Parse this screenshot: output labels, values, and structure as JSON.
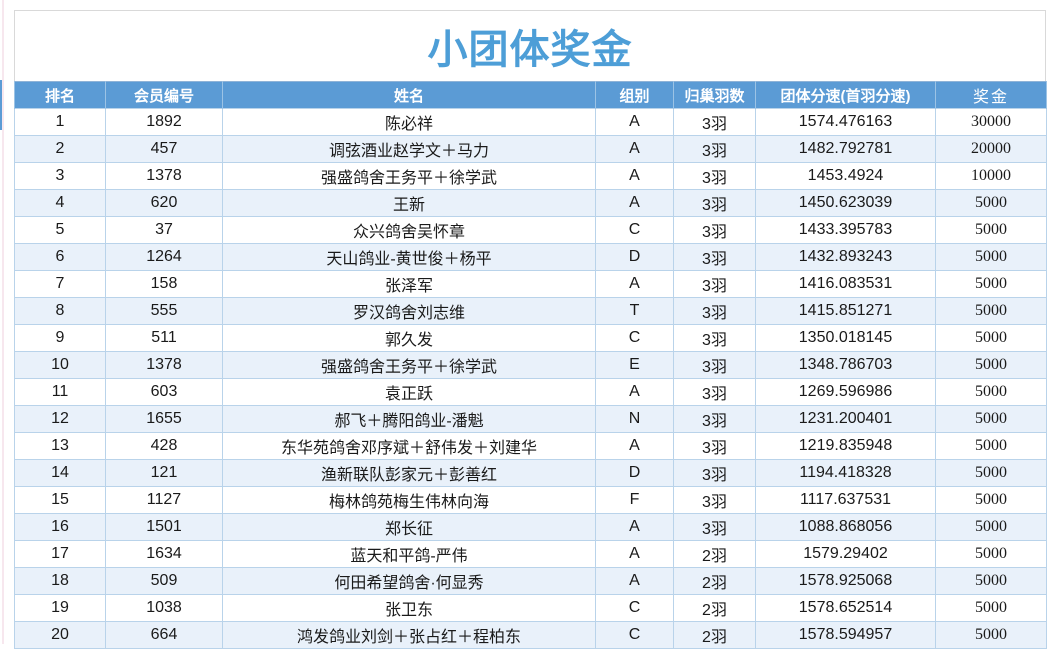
{
  "page": {
    "title": "小团体奖金"
  },
  "colors": {
    "header_bg": "#5b9bd5",
    "title_text": "#4d9ed7",
    "band_row_bg": "#e9f1fa",
    "grid_border": "#b9d3ea",
    "outer_border": "#8fb3d7",
    "title_border": "#d9d9d9"
  },
  "table": {
    "columns": [
      "排名",
      "会员编号",
      "姓名",
      "组别",
      "归巢羽数",
      "团体分速(首羽分速)",
      "奖金"
    ],
    "rows": [
      {
        "rank": "1",
        "member_id": "1892",
        "name": "陈必祥",
        "group": "A",
        "homing_birds": "3羽",
        "speed": "1574.476163",
        "prize": "30000"
      },
      {
        "rank": "2",
        "member_id": "457",
        "name": "调弦酒业赵学文＋马力",
        "group": "A",
        "homing_birds": "3羽",
        "speed": "1482.792781",
        "prize": "20000"
      },
      {
        "rank": "3",
        "member_id": "1378",
        "name": "强盛鸽舍王务平＋徐学武",
        "group": "A",
        "homing_birds": "3羽",
        "speed": "1453.4924",
        "prize": "10000"
      },
      {
        "rank": "4",
        "member_id": "620",
        "name": "王新",
        "group": "A",
        "homing_birds": "3羽",
        "speed": "1450.623039",
        "prize": "5000"
      },
      {
        "rank": "5",
        "member_id": "37",
        "name": "众兴鸽舍吴怀章",
        "group": "C",
        "homing_birds": "3羽",
        "speed": "1433.395783",
        "prize": "5000"
      },
      {
        "rank": "6",
        "member_id": "1264",
        "name": "天山鸽业-黄世俊＋杨平",
        "group": "D",
        "homing_birds": "3羽",
        "speed": "1432.893243",
        "prize": "5000"
      },
      {
        "rank": "7",
        "member_id": "158",
        "name": "张泽军",
        "group": "A",
        "homing_birds": "3羽",
        "speed": "1416.083531",
        "prize": "5000"
      },
      {
        "rank": "8",
        "member_id": "555",
        "name": "罗汉鸽舍刘志维",
        "group": "T",
        "homing_birds": "3羽",
        "speed": "1415.851271",
        "prize": "5000"
      },
      {
        "rank": "9",
        "member_id": "511",
        "name": "郭久发",
        "group": "C",
        "homing_birds": "3羽",
        "speed": "1350.018145",
        "prize": "5000"
      },
      {
        "rank": "10",
        "member_id": "1378",
        "name": "强盛鸽舍王务平＋徐学武",
        "group": "E",
        "homing_birds": "3羽",
        "speed": "1348.786703",
        "prize": "5000"
      },
      {
        "rank": "11",
        "member_id": "603",
        "name": "袁正跃",
        "group": "A",
        "homing_birds": "3羽",
        "speed": "1269.596986",
        "prize": "5000"
      },
      {
        "rank": "12",
        "member_id": "1655",
        "name": "郝飞＋腾阳鸽业-潘魁",
        "group": "N",
        "homing_birds": "3羽",
        "speed": "1231.200401",
        "prize": "5000"
      },
      {
        "rank": "13",
        "member_id": "428",
        "name": "东华苑鸽舍邓序斌＋舒伟发＋刘建华",
        "group": "A",
        "homing_birds": "3羽",
        "speed": "1219.835948",
        "prize": "5000"
      },
      {
        "rank": "14",
        "member_id": "121",
        "name": "渔新联队彭家元＋彭善红",
        "group": "D",
        "homing_birds": "3羽",
        "speed": "1194.418328",
        "prize": "5000"
      },
      {
        "rank": "15",
        "member_id": "1127",
        "name": "梅林鸽苑梅生伟林向海",
        "group": "F",
        "homing_birds": "3羽",
        "speed": "1117.637531",
        "prize": "5000"
      },
      {
        "rank": "16",
        "member_id": "1501",
        "name": "郑长征",
        "group": "A",
        "homing_birds": "3羽",
        "speed": "1088.868056",
        "prize": "5000"
      },
      {
        "rank": "17",
        "member_id": "1634",
        "name": "蓝天和平鸽-严伟",
        "group": "A",
        "homing_birds": "2羽",
        "speed": "1579.29402",
        "prize": "5000"
      },
      {
        "rank": "18",
        "member_id": "509",
        "name": "何田希望鸽舍·何显秀",
        "group": "A",
        "homing_birds": "2羽",
        "speed": "1578.925068",
        "prize": "5000"
      },
      {
        "rank": "19",
        "member_id": "1038",
        "name": "张卫东",
        "group": "C",
        "homing_birds": "2羽",
        "speed": "1578.652514",
        "prize": "5000"
      },
      {
        "rank": "20",
        "member_id": "664",
        "name": "鸿发鸽业刘剑＋张占红＋程柏东",
        "group": "C",
        "homing_birds": "2羽",
        "speed": "1578.594957",
        "prize": "5000"
      }
    ]
  }
}
